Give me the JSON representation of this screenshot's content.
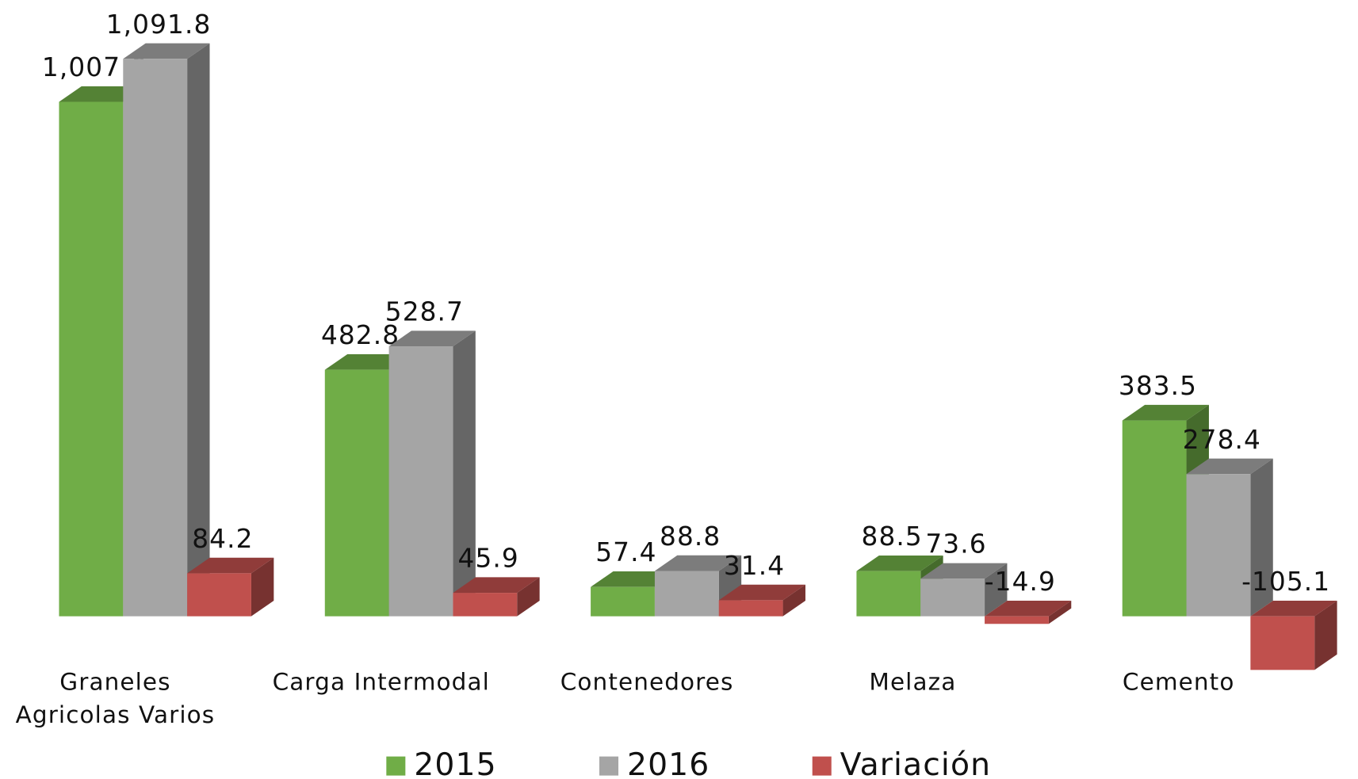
{
  "chart_data": {
    "type": "bar3d",
    "categories": [
      "Graneles Agricolas Varios",
      "Carga Intermodal",
      "Contenedores",
      "Melaza",
      "Cemento"
    ],
    "series": [
      {
        "name": "2015",
        "color": "#70ad47",
        "values": [
          1007.6,
          482.8,
          57.4,
          88.5,
          383.5
        ],
        "value_labels": [
          "1,007.6",
          "482.8",
          "57.4",
          "88.5",
          "383.5"
        ]
      },
      {
        "name": "2016",
        "color": "#a5a5a5",
        "values": [
          1091.8,
          528.7,
          88.8,
          73.6,
          278.4
        ],
        "value_labels": [
          "1,091.8",
          "528.7",
          "88.8",
          "73.6",
          "278.4"
        ]
      },
      {
        "name": "Variación",
        "color": "#c0504d",
        "values": [
          84.2,
          45.9,
          31.4,
          -14.9,
          -105.1
        ],
        "value_labels": [
          "84.2",
          "45.9",
          "31.4",
          "-14.9",
          "-105.1"
        ]
      }
    ],
    "legend": "bottom"
  }
}
